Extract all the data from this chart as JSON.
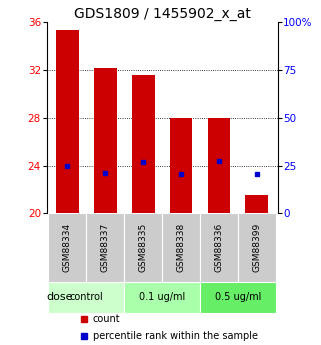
{
  "title": "GDS1809 / 1455902_x_at",
  "samples": [
    "GSM88334",
    "GSM88337",
    "GSM88335",
    "GSM88338",
    "GSM88336",
    "GSM88399"
  ],
  "bar_tops": [
    35.4,
    32.2,
    31.6,
    28.0,
    28.0,
    21.5
  ],
  "bar_bottom": 20.0,
  "blue_vals": [
    24.0,
    23.4,
    24.3,
    23.3,
    24.4,
    23.3
  ],
  "ylim_left": [
    20,
    36
  ],
  "ylim_right": [
    0,
    100
  ],
  "yticks_left": [
    20,
    24,
    28,
    32,
    36
  ],
  "yticks_right": [
    0,
    25,
    50,
    75,
    100
  ],
  "yticklabels_right": [
    "0",
    "25",
    "50",
    "75",
    "100%"
  ],
  "bar_color": "#cc0000",
  "blue_color": "#0000cc",
  "grid_linestyle": ":",
  "groups": [
    {
      "label": "control",
      "indices": [
        0,
        1
      ],
      "color": "#ccffcc"
    },
    {
      "label": "0.1 ug/ml",
      "indices": [
        2,
        3
      ],
      "color": "#aaffaa"
    },
    {
      "label": "0.5 ug/ml",
      "indices": [
        4,
        5
      ],
      "color": "#66ee66"
    }
  ],
  "dose_label": "dose",
  "legend_items": [
    {
      "label": "count",
      "color": "#cc0000"
    },
    {
      "label": "percentile rank within the sample",
      "color": "#0000cc"
    }
  ],
  "label_bg_color": "#cccccc",
  "title_fontsize": 10,
  "tick_fontsize": 7.5,
  "sample_fontsize": 6.5,
  "dose_fontsize": 8,
  "legend_fontsize": 7,
  "bar_width": 0.6
}
